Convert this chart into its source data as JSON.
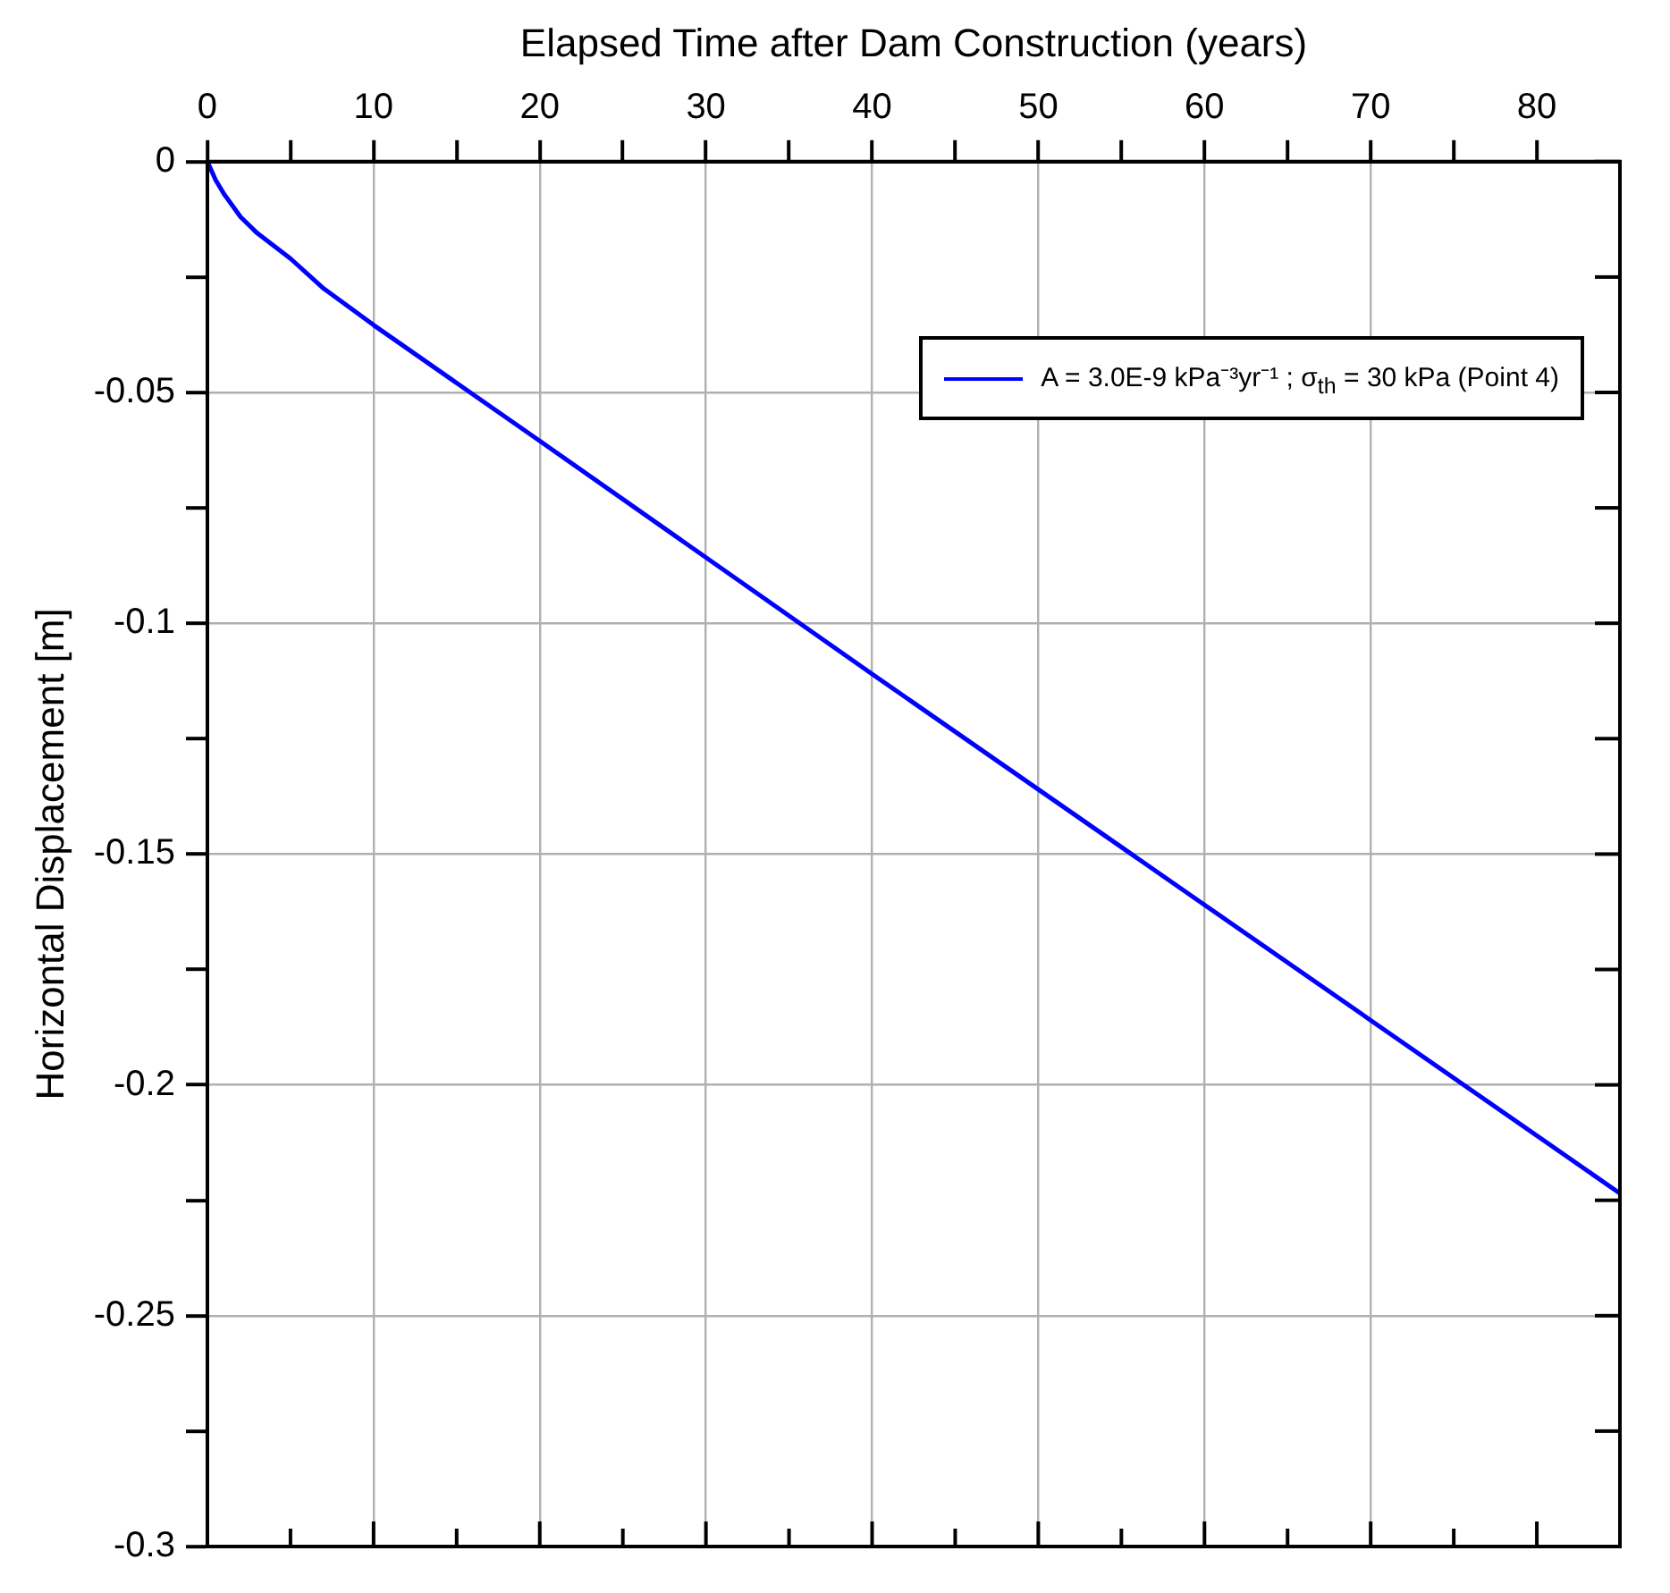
{
  "chart_data": {
    "type": "line",
    "xlabel": "Elapsed Time after Dam Construction (years)",
    "ylabel": "Horizontal Displacement [m]",
    "x": [
      0,
      0.5,
      1,
      2,
      3,
      5,
      7,
      10,
      20,
      40,
      60,
      85
    ],
    "series": [
      {
        "name": "A = 3.0E-9 kPa⁻³yr⁻¹ ; σ$_{th}$ = 30 kPa (Point 4)",
        "color": "#0000ff",
        "values": [
          0,
          -0.004,
          -0.007,
          -0.012,
          -0.0155,
          -0.021,
          -0.0275,
          -0.0354,
          -0.0605,
          -0.111,
          -0.161,
          -0.2235
        ]
      }
    ],
    "xlim": [
      0,
      85
    ],
    "xticks": [
      0,
      {
        "value": 5,
        "label": null
      },
      10,
      {
        "value": 15,
        "label": null
      },
      20,
      {
        "value": 25,
        "label": null
      },
      30,
      {
        "value": 35,
        "label": null
      },
      40,
      {
        "value": 45,
        "label": null
      },
      50,
      {
        "value": 55,
        "label": null
      },
      60,
      {
        "value": 65,
        "label": null
      },
      70,
      {
        "value": 75,
        "label": null
      },
      80
    ],
    "ylim": [
      -0.3,
      0
    ],
    "yticks": [
      -0.3,
      {
        "value": -0.275,
        "label": null
      },
      -0.25,
      {
        "value": -0.225,
        "label": null
      },
      -0.2,
      {
        "value": -0.175,
        "label": null
      },
      -0.15,
      {
        "value": -0.125,
        "label": null
      },
      -0.1,
      {
        "value": -0.075,
        "label": null
      },
      -0.05,
      {
        "value": -0.025,
        "label": null
      },
      0
    ],
    "grid": true,
    "legend": "top right",
    "marker": "none",
    "line_style": "solid"
  }
}
